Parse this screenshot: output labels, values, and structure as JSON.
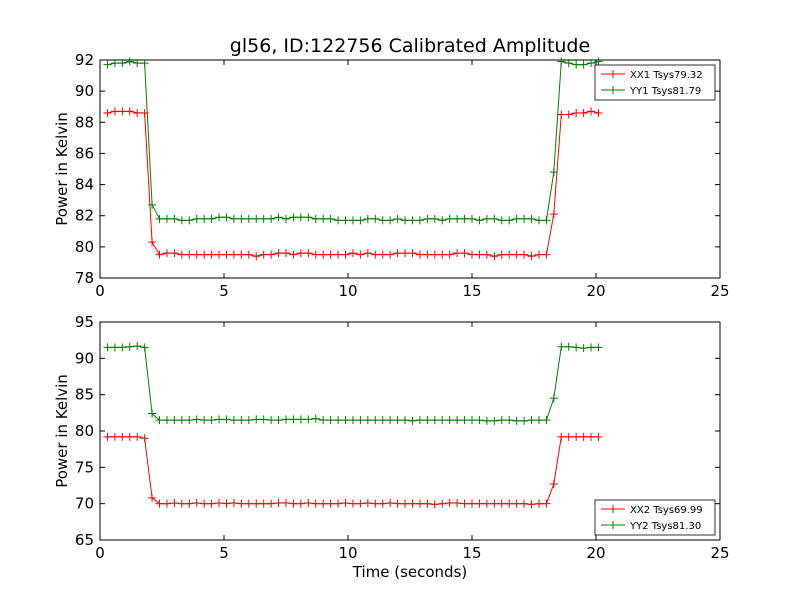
{
  "chart_data": [
    {
      "type": "line",
      "title": "gl56, ID:122756 Calibrated Amplitude",
      "xlabel": "",
      "ylabel": "Power in Kelvin",
      "xlim": [
        0,
        25
      ],
      "ylim": [
        78,
        92
      ],
      "xticks": [
        "0",
        "5",
        "10",
        "15",
        "20",
        "25"
      ],
      "yticks": [
        "78",
        "80",
        "82",
        "84",
        "86",
        "88",
        "90",
        "92"
      ],
      "grid": false,
      "legend_position": "top-right",
      "x": [
        0.3,
        0.6,
        0.9,
        1.2,
        1.5,
        1.8,
        2.1,
        2.4,
        2.7,
        3.0,
        3.3,
        3.6,
        3.9,
        4.2,
        4.5,
        4.8,
        5.1,
        5.4,
        5.7,
        6.0,
        6.3,
        6.6,
        6.9,
        7.2,
        7.5,
        7.8,
        8.1,
        8.4,
        8.7,
        9.0,
        9.3,
        9.6,
        9.9,
        10.2,
        10.5,
        10.8,
        11.1,
        11.4,
        11.7,
        12.0,
        12.3,
        12.6,
        12.9,
        13.2,
        13.5,
        13.8,
        14.1,
        14.4,
        14.7,
        15.0,
        15.3,
        15.6,
        15.9,
        16.2,
        16.5,
        16.8,
        17.1,
        17.4,
        17.7,
        18.0,
        18.3,
        18.6,
        18.9,
        19.2,
        19.5,
        19.8,
        20.1
      ],
      "series": [
        {
          "name": "XX1 Tsys79.32",
          "color": "#ff0000",
          "values": [
            88.6,
            88.7,
            88.7,
            88.7,
            88.6,
            88.6,
            80.3,
            79.5,
            79.6,
            79.6,
            79.5,
            79.5,
            79.5,
            79.5,
            79.5,
            79.5,
            79.5,
            79.5,
            79.5,
            79.5,
            79.4,
            79.5,
            79.5,
            79.6,
            79.6,
            79.5,
            79.6,
            79.6,
            79.5,
            79.5,
            79.5,
            79.5,
            79.5,
            79.6,
            79.5,
            79.6,
            79.5,
            79.5,
            79.5,
            79.6,
            79.6,
            79.6,
            79.5,
            79.5,
            79.5,
            79.5,
            79.5,
            79.6,
            79.6,
            79.5,
            79.5,
            79.5,
            79.4,
            79.5,
            79.5,
            79.5,
            79.5,
            79.4,
            79.5,
            79.5,
            82.1,
            88.5,
            88.5,
            88.6,
            88.6,
            88.7,
            88.6
          ]
        },
        {
          "name": "YY1 Tsys81.79",
          "color": "#008000",
          "values": [
            91.7,
            91.8,
            91.8,
            91.9,
            91.8,
            91.8,
            82.7,
            81.8,
            81.8,
            81.8,
            81.7,
            81.7,
            81.8,
            81.8,
            81.8,
            81.9,
            81.9,
            81.8,
            81.8,
            81.8,
            81.8,
            81.8,
            81.8,
            81.9,
            81.8,
            81.9,
            81.9,
            81.9,
            81.8,
            81.8,
            81.8,
            81.7,
            81.7,
            81.7,
            81.7,
            81.8,
            81.8,
            81.7,
            81.7,
            81.8,
            81.7,
            81.7,
            81.7,
            81.8,
            81.8,
            81.7,
            81.8,
            81.8,
            81.8,
            81.8,
            81.7,
            81.8,
            81.8,
            81.7,
            81.7,
            81.8,
            81.8,
            81.8,
            81.7,
            81.7,
            84.8,
            91.9,
            91.8,
            91.7,
            91.7,
            91.8,
            91.9
          ]
        }
      ]
    },
    {
      "type": "line",
      "title": "",
      "xlabel": "Time (seconds)",
      "ylabel": "Power in Kelvin",
      "xlim": [
        0,
        25
      ],
      "ylim": [
        65,
        95
      ],
      "xticks": [
        "0",
        "5",
        "10",
        "15",
        "20",
        "25"
      ],
      "yticks": [
        "65",
        "70",
        "75",
        "80",
        "85",
        "90",
        "95"
      ],
      "grid": false,
      "legend_position": "bottom-right",
      "x": [
        0.3,
        0.6,
        0.9,
        1.2,
        1.5,
        1.8,
        2.1,
        2.4,
        2.7,
        3.0,
        3.3,
        3.6,
        3.9,
        4.2,
        4.5,
        4.8,
        5.1,
        5.4,
        5.7,
        6.0,
        6.3,
        6.6,
        6.9,
        7.2,
        7.5,
        7.8,
        8.1,
        8.4,
        8.7,
        9.0,
        9.3,
        9.6,
        9.9,
        10.2,
        10.5,
        10.8,
        11.1,
        11.4,
        11.7,
        12.0,
        12.3,
        12.6,
        12.9,
        13.2,
        13.5,
        13.8,
        14.1,
        14.4,
        14.7,
        15.0,
        15.3,
        15.6,
        15.9,
        16.2,
        16.5,
        16.8,
        17.1,
        17.4,
        17.7,
        18.0,
        18.3,
        18.6,
        18.9,
        19.2,
        19.5,
        19.8,
        20.1
      ],
      "series": [
        {
          "name": "XX2 Tsys69.99",
          "color": "#ff0000",
          "values": [
            79.2,
            79.2,
            79.2,
            79.2,
            79.2,
            79.0,
            70.8,
            70.0,
            70.0,
            70.1,
            70.0,
            70.0,
            70.1,
            70.0,
            70.0,
            70.1,
            70.0,
            70.1,
            70.0,
            70.0,
            70.0,
            70.0,
            70.0,
            70.1,
            70.1,
            70.0,
            70.0,
            70.1,
            70.0,
            70.0,
            70.0,
            70.0,
            70.1,
            70.0,
            70.0,
            70.1,
            70.0,
            70.0,
            70.1,
            70.0,
            70.0,
            70.0,
            70.0,
            70.0,
            69.9,
            70.0,
            70.1,
            70.1,
            70.0,
            70.0,
            70.0,
            70.0,
            70.0,
            70.0,
            70.0,
            70.0,
            70.0,
            69.9,
            70.0,
            70.0,
            72.7,
            79.2,
            79.2,
            79.2,
            79.2,
            79.2,
            79.2
          ]
        },
        {
          "name": "YY2 Tsys81.30",
          "color": "#008000",
          "values": [
            91.5,
            91.5,
            91.5,
            91.6,
            91.7,
            91.5,
            82.4,
            81.5,
            81.5,
            81.5,
            81.5,
            81.5,
            81.6,
            81.5,
            81.5,
            81.6,
            81.6,
            81.5,
            81.5,
            81.5,
            81.6,
            81.6,
            81.5,
            81.5,
            81.6,
            81.6,
            81.6,
            81.6,
            81.7,
            81.5,
            81.5,
            81.5,
            81.5,
            81.5,
            81.5,
            81.5,
            81.5,
            81.5,
            81.5,
            81.5,
            81.5,
            81.4,
            81.5,
            81.5,
            81.5,
            81.5,
            81.5,
            81.5,
            81.5,
            81.5,
            81.5,
            81.4,
            81.4,
            81.5,
            81.5,
            81.4,
            81.4,
            81.5,
            81.5,
            81.5,
            84.5,
            91.6,
            91.6,
            91.5,
            91.4,
            91.5,
            91.5
          ]
        }
      ]
    }
  ]
}
